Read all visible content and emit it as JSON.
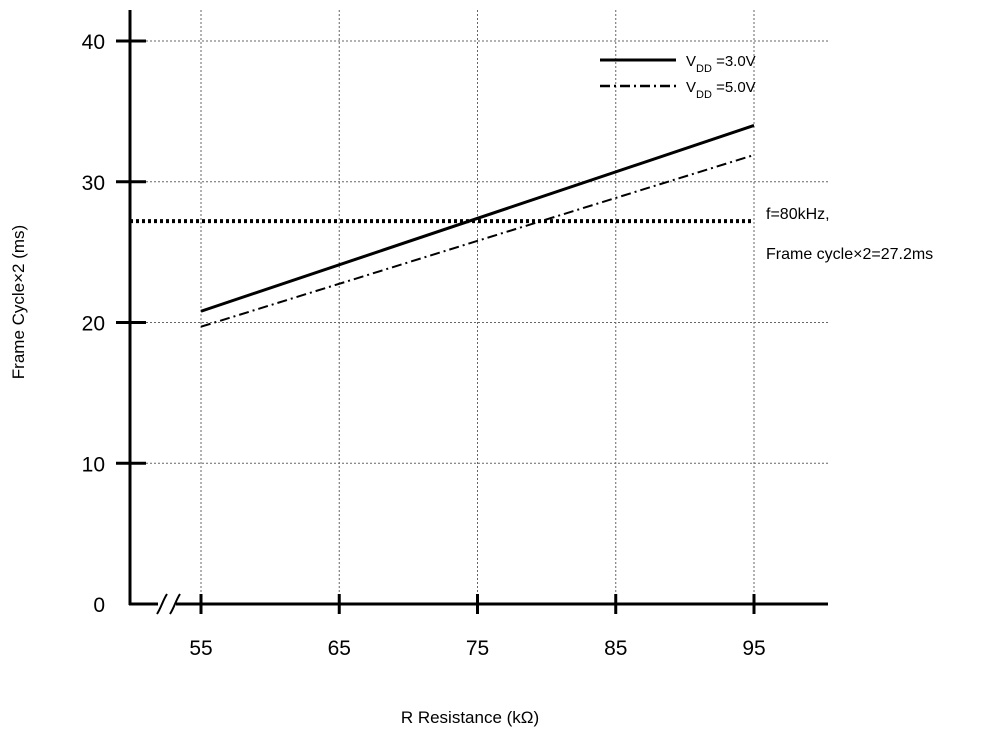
{
  "chart_data": {
    "type": "line",
    "xlabel": "R Resistance (kΩ)",
    "ylabel": "Frame Cycle×2 (ms)",
    "xlim": [
      50,
      100
    ],
    "ylim": [
      0,
      40
    ],
    "x_ticks": [
      55,
      65,
      75,
      85,
      95
    ],
    "y_ticks": [
      0,
      10,
      20,
      30,
      40
    ],
    "grid": true,
    "x_axis_break": true,
    "legend_position": "top-right",
    "series": [
      {
        "name_main": "V",
        "name_sub": "DD",
        "name_rest": " =3.0V",
        "style": "solid",
        "x": [
          55,
          95
        ],
        "y": [
          20.8,
          34.0
        ]
      },
      {
        "name_main": "V",
        "name_sub": "DD",
        "name_rest": " =5.0V",
        "style": "dashdot",
        "x": [
          55,
          95
        ],
        "y": [
          19.7,
          31.9
        ]
      }
    ],
    "reference_line": {
      "y": 27.2,
      "style": "dotted"
    },
    "annotations": [
      "f=80kHz,",
      "Frame cycle×2=27.2ms"
    ]
  }
}
